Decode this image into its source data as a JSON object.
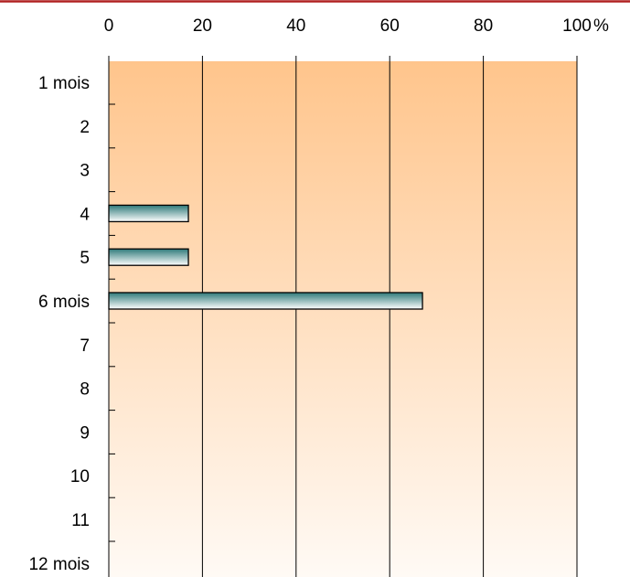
{
  "chart_data": {
    "type": "bar",
    "orientation": "horizontal",
    "categories": [
      "1 mois",
      "2",
      "3",
      "4",
      "5",
      "6 mois",
      "7",
      "8",
      "9",
      "10",
      "11",
      "12 mois"
    ],
    "values": [
      0,
      0,
      0,
      17,
      17,
      67,
      0,
      0,
      0,
      0,
      0,
      0
    ],
    "xlim": [
      0,
      100
    ],
    "xticks": [
      0,
      20,
      40,
      60,
      80,
      100
    ],
    "unit": "%",
    "xaxis_position": "top",
    "grid": "vertical",
    "colors": {
      "border_top": "#b02020",
      "plot_bg_top": "#ffc58c",
      "plot_bg_bottom": "#fffaf5",
      "bar_dark": "#2f7a7a",
      "bar_light": "#ffffff",
      "bar_stroke": "#000000"
    }
  }
}
